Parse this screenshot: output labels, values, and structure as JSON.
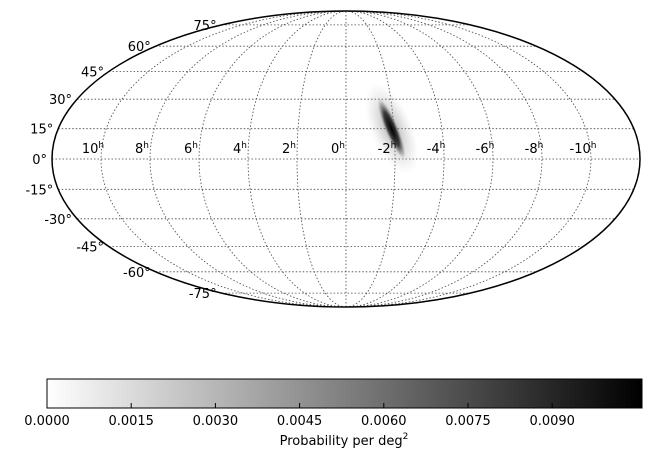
{
  "chart_data": {
    "type": "heatmap",
    "projection": "mollweide",
    "grid": true,
    "lat_labels": [
      "75°",
      "60°",
      "45°",
      "30°",
      "15°",
      "0°",
      "-15°",
      "-30°",
      "-45°",
      "-60°",
      "-75°"
    ],
    "lat_values": [
      75,
      60,
      45,
      30,
      15,
      0,
      -15,
      -30,
      -45,
      -60,
      -75
    ],
    "ra_labels": [
      {
        "base": "10",
        "sup": "h"
      },
      {
        "base": "8",
        "sup": "h"
      },
      {
        "base": "6",
        "sup": "h"
      },
      {
        "base": "4",
        "sup": "h"
      },
      {
        "base": "2",
        "sup": "h"
      },
      {
        "base": "0",
        "sup": "h"
      },
      {
        "base": "-2",
        "sup": "h"
      },
      {
        "base": "-4",
        "sup": "h"
      },
      {
        "base": "-6",
        "sup": "h"
      },
      {
        "base": "-8",
        "sup": "h"
      },
      {
        "base": "-10",
        "sup": "h"
      }
    ],
    "ra_values_hours": [
      10,
      8,
      6,
      4,
      2,
      0,
      -2,
      -4,
      -6,
      -8,
      -10
    ],
    "probability_region": {
      "description": "elongated high-probability streak",
      "ra_hours_range": [
        -2.4,
        -1.5
      ],
      "dec_range": [
        0,
        30
      ],
      "peak_ra_hours": -1.9,
      "peak_dec": 15
    },
    "colorbar": {
      "label": "Probability per deg",
      "label_sup": "2",
      "ticks": [
        "0.0000",
        "0.0015",
        "0.0030",
        "0.0045",
        "0.0060",
        "0.0075",
        "0.0090"
      ],
      "tick_values": [
        0.0,
        0.0015,
        0.003,
        0.0045,
        0.006,
        0.0075,
        0.009
      ],
      "range": [
        0.0,
        0.0106
      ],
      "colormap": [
        "#ffffff",
        "#000000"
      ]
    }
  }
}
